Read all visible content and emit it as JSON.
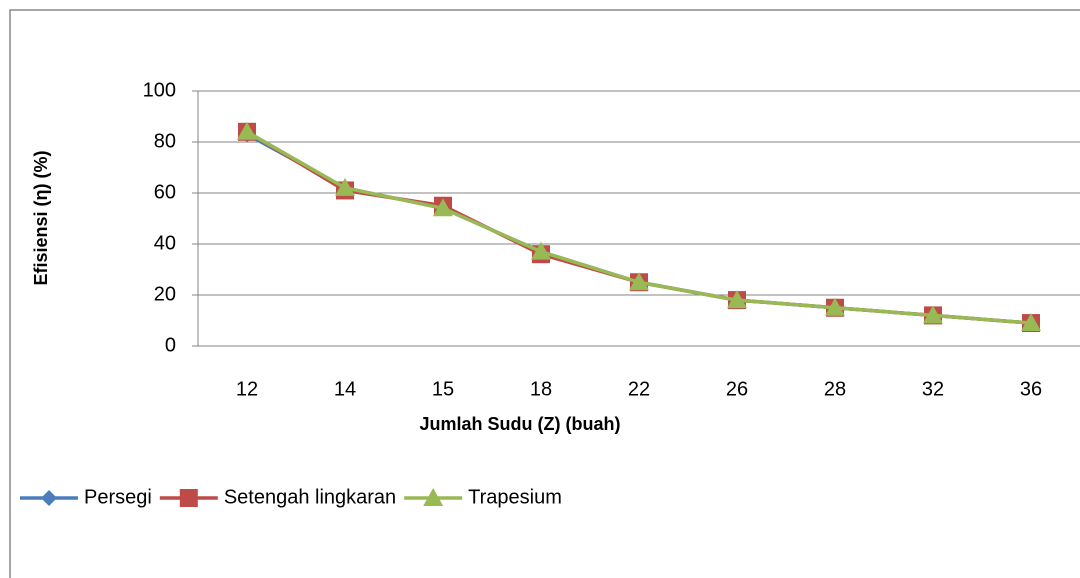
{
  "chart_data": {
    "type": "line",
    "x_label": "Jumlah Sudu (Z) (buah)",
    "y_label": "Efisiensi (η) (%)",
    "categories": [
      "12",
      "14",
      "15",
      "18",
      "22",
      "26",
      "28",
      "32",
      "36"
    ],
    "series": [
      {
        "name": "Persegi",
        "color": "#4a7ebb",
        "marker": "diamond",
        "values": [
          83,
          62,
          54,
          37,
          25,
          18,
          15,
          12,
          9
        ]
      },
      {
        "name": "Setengah lingkaran",
        "color": "#be4b48",
        "marker": "square",
        "values": [
          84,
          61,
          55,
          36,
          25,
          18,
          15,
          12,
          9
        ]
      },
      {
        "name": "Trapesium",
        "color": "#98b954",
        "marker": "triangle",
        "values": [
          84,
          62,
          54,
          37,
          25,
          18,
          15,
          12,
          9
        ]
      }
    ],
    "ylim": [
      0,
      100
    ],
    "yticks": [
      0,
      20,
      40,
      60,
      80,
      100
    ],
    "grid": true,
    "legend": "bottom-left"
  }
}
